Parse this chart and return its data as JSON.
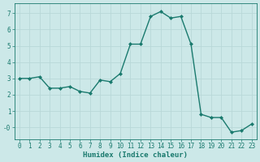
{
  "x": [
    0,
    1,
    2,
    3,
    4,
    5,
    6,
    7,
    8,
    9,
    10,
    11,
    12,
    13,
    14,
    15,
    16,
    17,
    18,
    19,
    20,
    21,
    22,
    23
  ],
  "y": [
    3.0,
    3.0,
    3.1,
    2.4,
    2.4,
    2.5,
    2.2,
    2.1,
    2.9,
    2.8,
    3.3,
    5.1,
    5.1,
    6.8,
    7.1,
    6.7,
    6.8,
    5.1,
    0.8,
    0.6,
    0.6,
    -0.3,
    -0.2,
    0.2
  ],
  "line_color": "#1a7a6e",
  "marker": "D",
  "marker_size": 2.0,
  "bg_color": "#cce8e8",
  "grid_color": "#b8d8d8",
  "xlabel": "Humidex (Indice chaleur)",
  "xlim": [
    -0.5,
    23.5
  ],
  "ylim": [
    -0.75,
    7.6
  ],
  "yticks": [
    0,
    1,
    2,
    3,
    4,
    5,
    6,
    7
  ],
  "ytick_labels": [
    "-0",
    "1",
    "2",
    "3",
    "4",
    "5",
    "6",
    "7"
  ],
  "xticks": [
    0,
    1,
    2,
    3,
    4,
    5,
    6,
    7,
    8,
    9,
    10,
    11,
    12,
    13,
    14,
    15,
    16,
    17,
    18,
    19,
    20,
    21,
    22,
    23
  ],
  "tick_fontsize": 5.5,
  "label_fontsize": 6.5,
  "linewidth": 1.0
}
